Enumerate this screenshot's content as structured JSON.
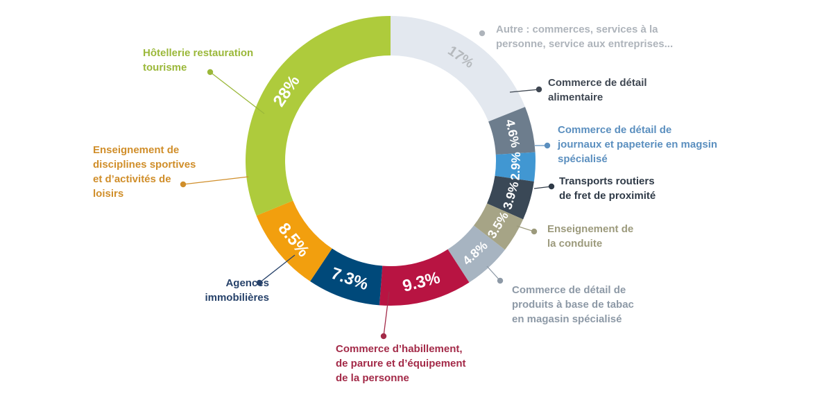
{
  "chart_data": {
    "type": "pie",
    "title": "",
    "slices": [
      {
        "label": [
          "Autre : commerces, services à la",
          "personne, service aux entreprises..."
        ],
        "value_text": "17%",
        "value": 17,
        "color": "#e3e8ef",
        "label_color": "#aeb4bb",
        "text_color": "#b5b9bd"
      },
      {
        "label": [
          "Commerce de détail",
          "alimentaire"
        ],
        "value_text": "4.6%",
        "value": 4.6,
        "color": "#6d7d8d",
        "label_color": "#3f4752",
        "text_color": "#ffffff"
      },
      {
        "label": [
          "Commerce de détail de",
          "journaux et papeterie en magsin",
          "spécialisé"
        ],
        "value_text": "2.9%",
        "value": 2.9,
        "color": "#4197d2",
        "label_color": "#5b8fbf",
        "text_color": "#ffffff"
      },
      {
        "label": [
          "Transports routiers",
          "de fret de proximité"
        ],
        "value_text": "3.9%",
        "value": 3.9,
        "color": "#3a4856",
        "label_color": "#2f3a47",
        "text_color": "#ffffff"
      },
      {
        "label": [
          "Enseignement de",
          "la conduite"
        ],
        "value_text": "3.5%",
        "value": 3.5,
        "color": "#a6a486",
        "label_color": "#9c9a7c",
        "text_color": "#ffffff"
      },
      {
        "label": [
          "Commerce de détail de",
          "produits à base de tabac",
          "en magasin spécialisé"
        ],
        "value_text": "4.8%",
        "value": 4.8,
        "color": "#a7b4c1",
        "label_color": "#8d99a6",
        "text_color": "#ffffff"
      },
      {
        "label": [
          "Commerce d’habillement,",
          "de parure et d’équipement",
          "de la personne"
        ],
        "value_text": "9.3%",
        "value": 9.3,
        "color": "#b81442",
        "label_color": "#a32a48",
        "text_color": "#ffffff"
      },
      {
        "label": [
          "Agences",
          "immobilières"
        ],
        "value_text": "7.3%",
        "value": 7.3,
        "color": "#00497a",
        "label_color": "#27426a",
        "text_color": "#ffffff"
      },
      {
        "label": [
          "Enseignement de",
          "disciplines sportives",
          "et d’activités de",
          "loisirs"
        ],
        "value_text": "8.5%",
        "value": 8.5,
        "color": "#f29f0e",
        "label_color": "#d08e2a",
        "text_color": "#ffffff"
      },
      {
        "label": [
          "Hôtellerie restauration",
          "tourisme"
        ],
        "value_text": "28%",
        "value": 28,
        "color": "#aecb3c",
        "label_color": "#9bb83a",
        "text_color": "#ffffff"
      }
    ],
    "legend": "none",
    "grid": false
  }
}
